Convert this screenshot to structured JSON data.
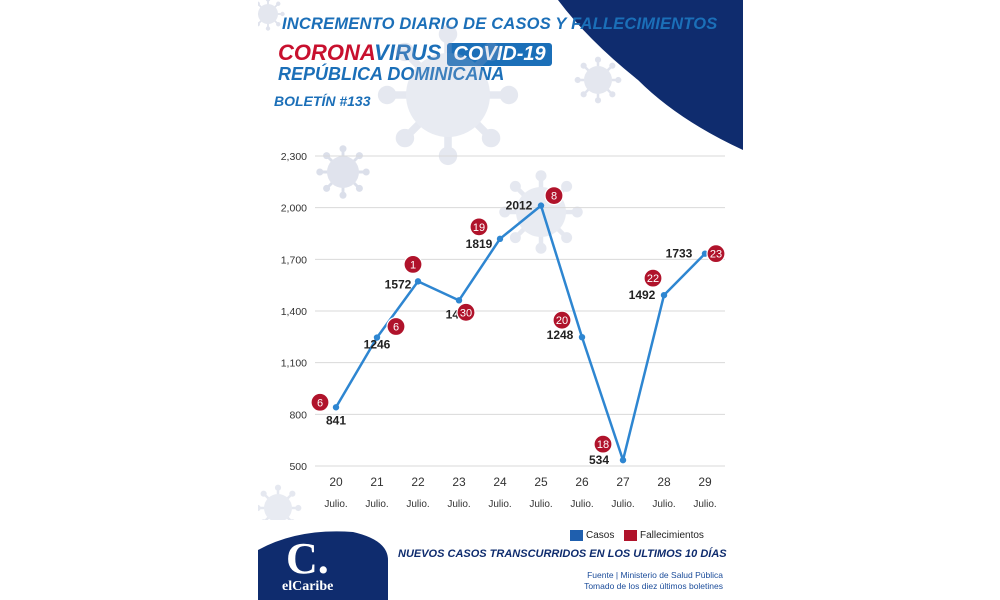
{
  "header": {
    "line1": "INCREMENTO DIARIO DE CASOS Y FALLECIMIENTOS",
    "corona": "CORONA",
    "virus": "VIRUS",
    "covid": "COVID-19",
    "country": "REPÚBLICA DOMINICANA",
    "bulletin": "BOLETÍN #133"
  },
  "legend": {
    "cases": "Casos",
    "deaths": "Fallecimientos"
  },
  "footer": {
    "title": "NUEVOS CASOS TRANSCURRIDOS EN LOS ULTIMOS 10 DÍAS",
    "source1": "Fuente  |  Ministerio de Salud Pública",
    "source2": "Tomado de  los diez últimos boletines"
  },
  "logo": {
    "letter": "C.",
    "name": "elCaribe"
  },
  "colors": {
    "cases": "#2e86d1",
    "deaths": "#b0132b",
    "navy": "#0f2c6e",
    "accent_blue": "#1b6fb8",
    "grid": "#d9d9d9"
  },
  "chart_data": {
    "type": "line",
    "categories": [
      "20",
      "21",
      "22",
      "23",
      "24",
      "25",
      "26",
      "27",
      "28",
      "29"
    ],
    "category_sublabel": "Julio.",
    "yticks": [
      "500",
      "800",
      "1,100",
      "1,400",
      "1,700",
      "2,000",
      "2,300"
    ],
    "ylim": [
      500,
      2300
    ],
    "grid": true,
    "series": [
      {
        "name": "Casos",
        "values": [
          841,
          1246,
          1572,
          1462,
          1819,
          2012,
          1248,
          534,
          1492,
          1733
        ]
      },
      {
        "name": "Fallecimientos",
        "values": [
          6,
          6,
          1,
          30,
          19,
          8,
          20,
          18,
          22,
          23
        ]
      }
    ]
  }
}
